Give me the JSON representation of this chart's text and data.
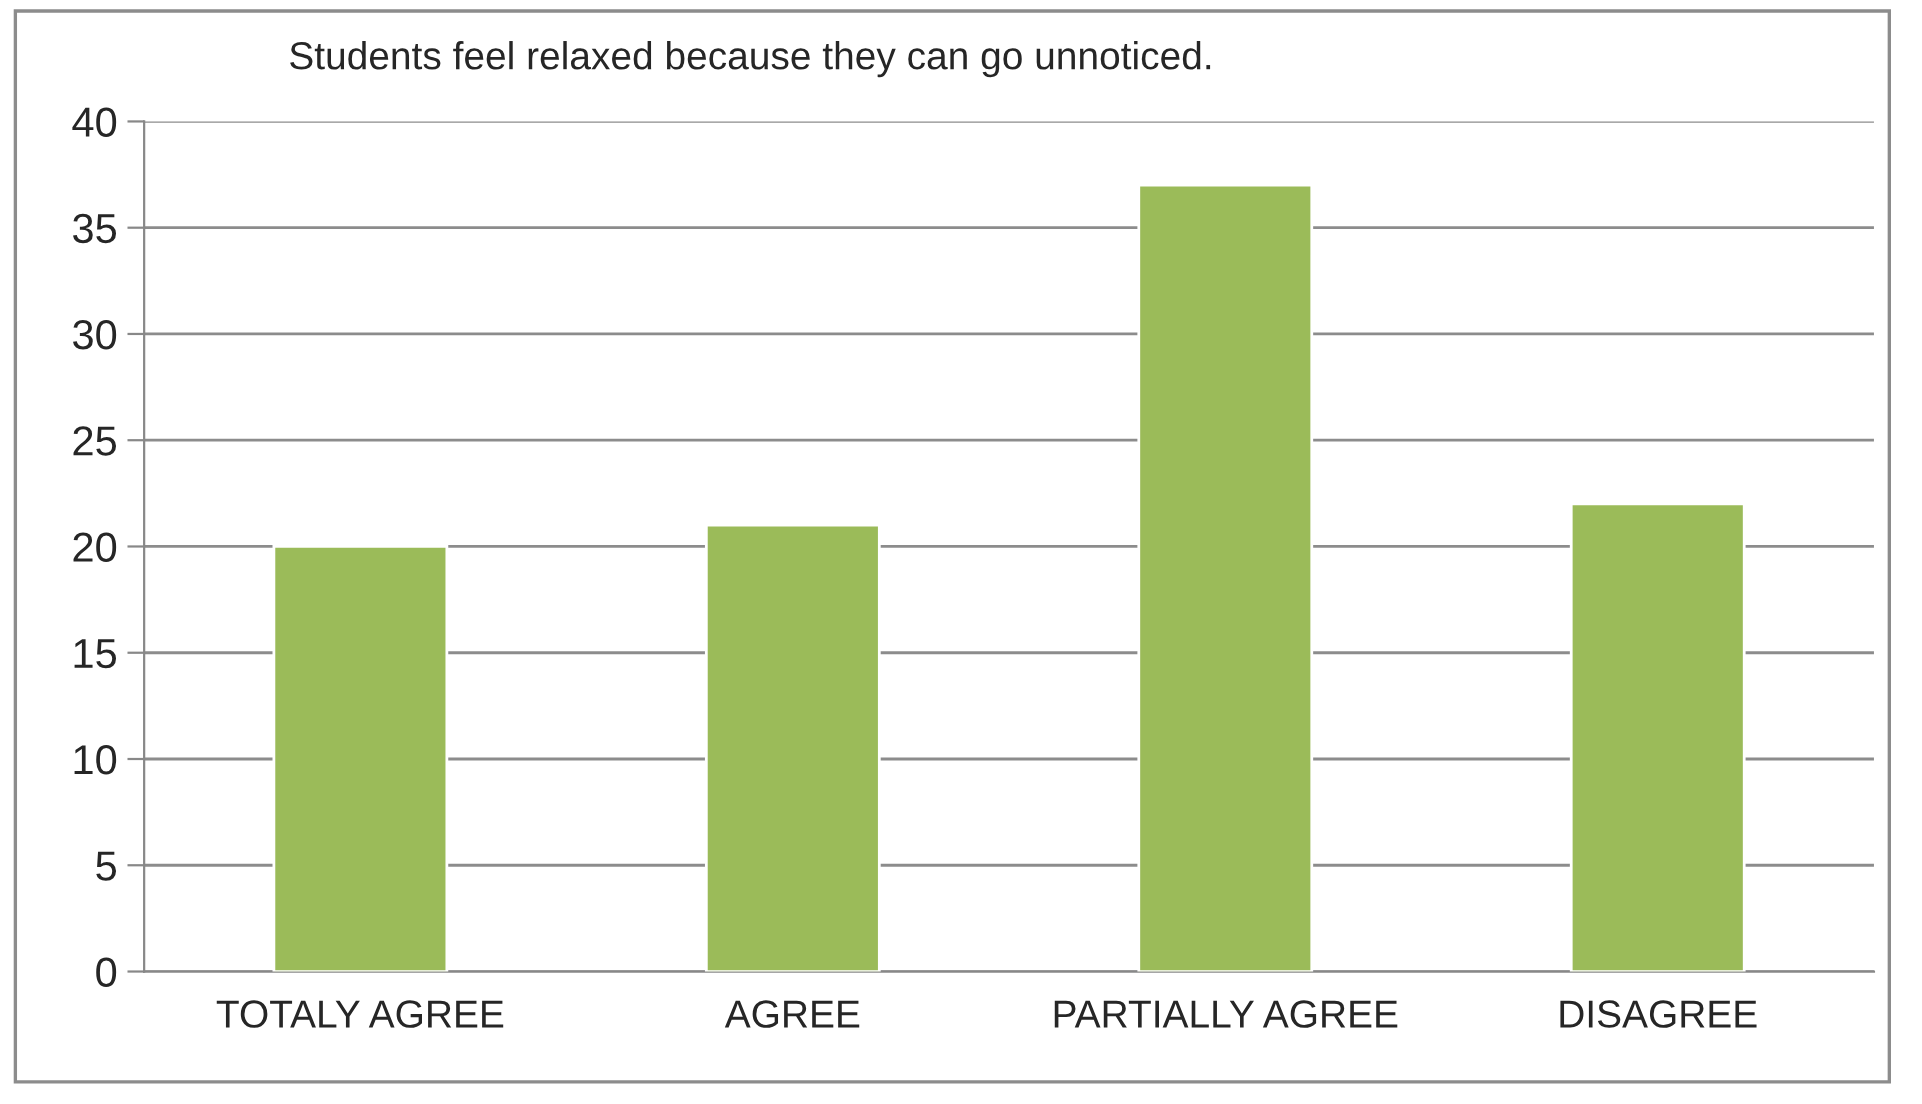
{
  "chart_data": {
    "type": "bar",
    "title": "Students feel relaxed because they can go unnoticed.",
    "categories": [
      "TOTALY AGREE",
      "AGREE",
      "PARTIALLY AGREE",
      "DISAGREE"
    ],
    "values": [
      20,
      21,
      37,
      22
    ],
    "color": "#9bbb59",
    "ylim": [
      0,
      40
    ],
    "yticks": [
      0,
      5,
      10,
      15,
      20,
      25,
      30,
      35,
      40
    ],
    "grid": "y",
    "legend": false
  }
}
